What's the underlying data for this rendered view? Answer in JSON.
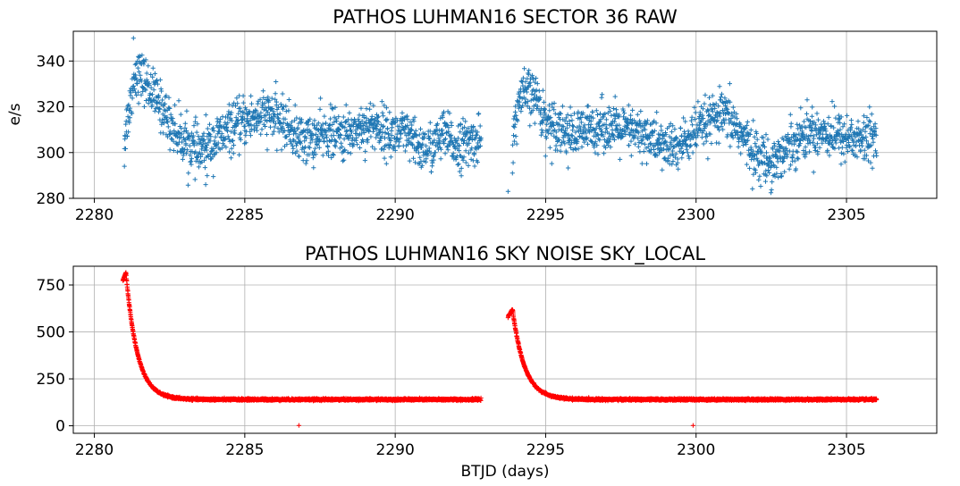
{
  "chart_data": [
    {
      "type": "scatter",
      "title": "PATHOS LUHMAN16 SECTOR 36 RAW",
      "xlabel": "",
      "ylabel": "e/s",
      "xlim": [
        2279.3,
        2308.0
      ],
      "ylim": [
        280,
        353
      ],
      "xticks": [
        2280,
        2285,
        2290,
        2295,
        2300,
        2305
      ],
      "yticks": [
        280,
        300,
        320,
        340
      ],
      "grid": true,
      "marker": "+",
      "color": "#1f77b4",
      "series": [
        {
          "trend": [
            [
              2281.0,
              307
            ],
            [
              2281.2,
              322
            ],
            [
              2281.35,
              335
            ],
            [
              2281.6,
              333
            ],
            [
              2281.9,
              327
            ],
            [
              2282.3,
              318
            ],
            [
              2282.7,
              309
            ],
            [
              2283.1,
              304
            ],
            [
              2283.5,
              300
            ],
            [
              2283.9,
              304
            ],
            [
              2284.4,
              309
            ],
            [
              2284.9,
              313
            ],
            [
              2285.4,
              316
            ],
            [
              2285.9,
              316
            ],
            [
              2286.3,
              313
            ],
            [
              2286.8,
              306
            ],
            [
              2287.3,
              306
            ],
            [
              2287.8,
              309
            ],
            [
              2288.3,
              307
            ],
            [
              2288.8,
              311
            ],
            [
              2289.3,
              312
            ],
            [
              2289.8,
              308
            ],
            [
              2290.3,
              308
            ],
            [
              2290.8,
              302
            ],
            [
              2291.2,
              302
            ],
            [
              2291.6,
              308
            ],
            [
              2292.0,
              303
            ],
            [
              2292.4,
              304
            ],
            [
              2292.85,
              306
            ]
          ],
          "trend2": [
            [
              2293.9,
              303
            ],
            [
              2294.1,
              322
            ],
            [
              2294.35,
              326
            ],
            [
              2294.7,
              324
            ],
            [
              2295.0,
              313
            ],
            [
              2295.4,
              312
            ],
            [
              2295.9,
              307
            ],
            [
              2296.4,
              310
            ],
            [
              2296.9,
              312
            ],
            [
              2297.4,
              310
            ],
            [
              2297.9,
              309
            ],
            [
              2298.4,
              307
            ],
            [
              2298.9,
              303
            ],
            [
              2299.4,
              302
            ],
            [
              2299.9,
              308
            ],
            [
              2300.4,
              313
            ],
            [
              2300.9,
              316
            ],
            [
              2301.3,
              312
            ],
            [
              2301.7,
              304
            ],
            [
              2302.1,
              298
            ],
            [
              2302.5,
              296
            ],
            [
              2302.9,
              300
            ],
            [
              2303.3,
              306
            ],
            [
              2303.8,
              309
            ],
            [
              2304.3,
              309
            ],
            [
              2304.8,
              307
            ],
            [
              2305.3,
              306
            ],
            [
              2305.6,
              305
            ],
            [
              2306.0,
              308
            ]
          ],
          "outliers": [
            [
              2281.0,
              294
            ],
            [
              2281.3,
              350
            ],
            [
              2293.75,
              283
            ],
            [
              2283.7,
              286
            ]
          ]
        }
      ]
    },
    {
      "type": "scatter",
      "title": "PATHOS LUHMAN16 SKY NOISE SKY_LOCAL",
      "xlabel": "BTJD (days)",
      "ylabel": "",
      "xlim": [
        2279.3,
        2308.0
      ],
      "ylim": [
        -40,
        850
      ],
      "xticks": [
        2280,
        2285,
        2290,
        2295,
        2300,
        2305
      ],
      "yticks": [
        0,
        250,
        500,
        750
      ],
      "grid": true,
      "marker": "+",
      "color": "#ff0000",
      "series": [
        {
          "segments": [
            {
              "start": 2280.95,
              "end": 2292.85,
              "peak": 815,
              "base": 140,
              "decay": 0.38,
              "rise_to": 2281.05
            },
            {
              "start": 2293.75,
              "end": 2306.0,
              "peak": 620,
              "base": 140,
              "decay": 0.4,
              "rise_to": 2293.9
            }
          ],
          "outliers": [
            [
              2286.8,
              2
            ],
            [
              2299.9,
              2
            ]
          ]
        }
      ]
    }
  ]
}
